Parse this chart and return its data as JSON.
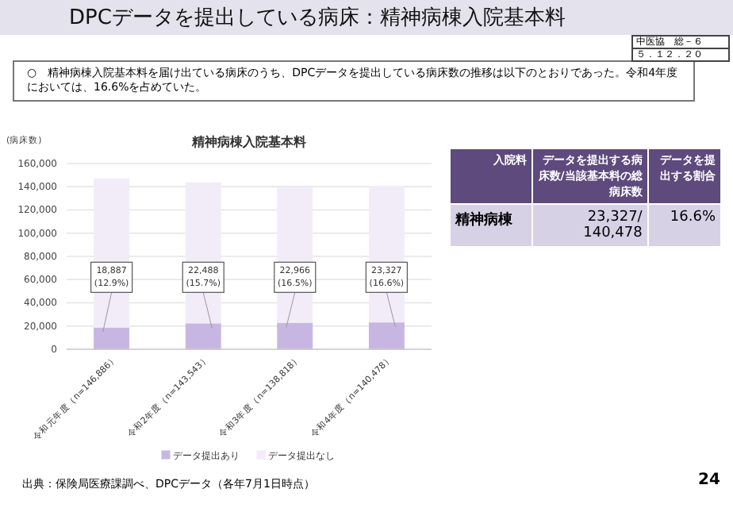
{
  "chart_data": [
    {
      "type": "other",
      "title": "DPCデータを提出している病床：精神病棟入院基本料",
      "subtitle": "○　精神病棟入院基本料を届け出ている病床のうち、DPCデータを提出している病床数の推移は以下のとおりであった。令和4年度においては、16.6%を占めていた。",
      "annotations": [
        "中医協　総－６",
        "５．１２．２０"
      ]
    },
    {
      "type": "bar",
      "title": "精神病棟入院基本料",
      "ylabel": "(病床数)",
      "categories": [
        "令和元年度（n=146,886）",
        "令和2年度（n=143,543）",
        "令和3年度（n=138,818）",
        "令和4年度（n=140,478）"
      ],
      "stacked": true,
      "series": [
        {
          "name": "データ提出あり",
          "color": "#c8b6e2",
          "values": [
            18887,
            22488,
            22966,
            23327
          ],
          "value_labels": [
            "18,887\n(12.9%)",
            "22,488\n(15.7%)",
            "22,966\n(16.5%)",
            "23,327\n(16.6%)"
          ]
        },
        {
          "name": "データ提出なし",
          "color": "#f1ecf8",
          "values": [
            127999,
            121055,
            115852,
            117151
          ]
        }
      ],
      "ylim": [
        0,
        160000
      ],
      "yticks": [
        {
          "value": 0,
          "label": "0"
        },
        {
          "value": 20000,
          "label": "20,000"
        },
        {
          "value": 40000,
          "label": "40,000"
        },
        {
          "value": 60000,
          "label": "60,000"
        },
        {
          "value": 80000,
          "label": "80,000"
        },
        {
          "value": 100000,
          "label": "100,000"
        },
        {
          "value": 120000,
          "label": "120,000"
        },
        {
          "value": 140000,
          "label": "140,000"
        },
        {
          "value": 160000,
          "label": "160,000"
        }
      ],
      "grid": "y",
      "legend": "bottom"
    },
    {
      "type": "other",
      "annotations": [
        "入院料",
        "データを提出する病床数/当該基本料の総病床数",
        "データを提出する割合",
        "精神病棟",
        "23,327/140,478",
        "16.6%",
        "出典：保険局医療課調べ、DPCデータ（各年7月1日時点）",
        "24"
      ]
    }
  ]
}
